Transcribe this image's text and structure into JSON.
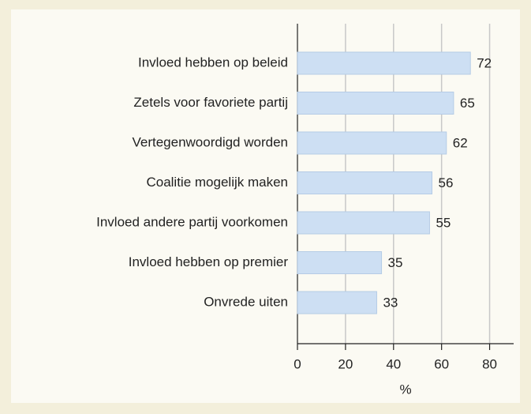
{
  "chart_data": {
    "type": "barh",
    "categories": [
      "Invloed hebben op beleid",
      "Zetels voor favoriete partij",
      "Vertegenwoordigd worden",
      "Coalitie mogelijk maken",
      "Invloed andere partij voorkomen",
      "Invloed hebben op premier",
      "Onvrede uiten"
    ],
    "values": [
      72,
      65,
      62,
      56,
      55,
      35,
      33
    ],
    "color": "#cddff3",
    "x_label": "%",
    "xlim": [
      0,
      90
    ],
    "xticks": [
      0,
      20,
      40,
      60,
      80
    ],
    "grid": true
  }
}
